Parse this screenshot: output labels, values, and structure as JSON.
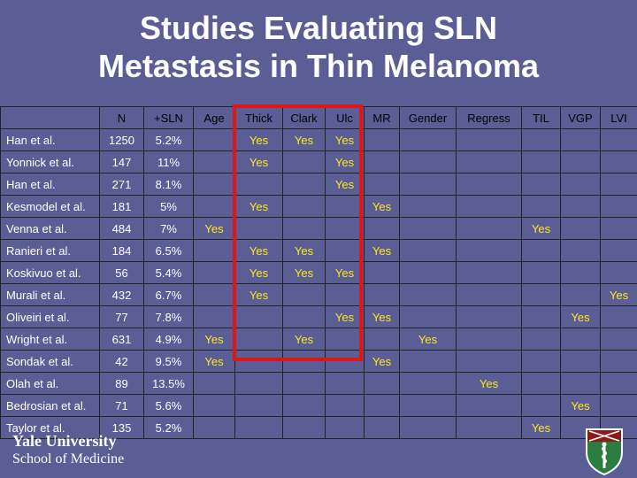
{
  "title": {
    "line1": "Studies Evaluating SLN",
    "line2": "Metastasis in Thin Melanoma"
  },
  "table": {
    "headers": [
      "",
      "N",
      "+SLN",
      "Age",
      "Thick",
      "Clark",
      "Ulc",
      "MR",
      "Gender",
      "Regress",
      "TIL",
      "VGP",
      "LVI"
    ],
    "rows": [
      [
        "Han et al.",
        "1250",
        "5.2%",
        "",
        "Yes",
        "Yes",
        "Yes",
        "",
        "",
        "",
        "",
        "",
        ""
      ],
      [
        "Yonnick et al.",
        "147",
        "11%",
        "",
        "Yes",
        "",
        "Yes",
        "",
        "",
        "",
        "",
        "",
        ""
      ],
      [
        "Han et al.",
        "271",
        "8.1%",
        "",
        "",
        "",
        "Yes",
        "",
        "",
        "",
        "",
        "",
        ""
      ],
      [
        "Kesmodel et al.",
        "181",
        "5%",
        "",
        "Yes",
        "",
        "",
        "Yes",
        "",
        "",
        "",
        "",
        ""
      ],
      [
        "Venna et al.",
        "484",
        "7%",
        "Yes",
        "",
        "",
        "",
        "",
        "",
        "",
        "Yes",
        "",
        ""
      ],
      [
        "Ranieri et al.",
        "184",
        "6.5%",
        "",
        "Yes",
        "Yes",
        "",
        "Yes",
        "",
        "",
        "",
        "",
        ""
      ],
      [
        "Koskivuo et al.",
        "56",
        "5.4%",
        "",
        "Yes",
        "Yes",
        "Yes",
        "",
        "",
        "",
        "",
        "",
        ""
      ],
      [
        "Murali et al.",
        "432",
        "6.7%",
        "",
        "Yes",
        "",
        "",
        "",
        "",
        "",
        "",
        "",
        "Yes"
      ],
      [
        "Oliveiri et al.",
        "77",
        "7.8%",
        "",
        "",
        "",
        "Yes",
        "Yes",
        "",
        "",
        "",
        "Yes",
        ""
      ],
      [
        "Wright et al.",
        "631",
        "4.9%",
        "Yes",
        "",
        "Yes",
        "",
        "",
        "Yes",
        "",
        "",
        "",
        ""
      ],
      [
        "Sondak et al.",
        "42",
        "9.5%",
        "Yes",
        "",
        "",
        "",
        "Yes",
        "",
        "",
        "",
        "",
        ""
      ],
      [
        "Olah et al.",
        "89",
        "13.5%",
        "",
        "",
        "",
        "",
        "",
        "",
        "Yes",
        "",
        "",
        ""
      ],
      [
        "Bedrosian et al.",
        "71",
        "5.6%",
        "",
        "",
        "",
        "",
        "",
        "",
        "",
        "",
        "Yes",
        ""
      ],
      [
        "Taylor et al.",
        "135",
        "5.2%",
        "",
        "",
        "",
        "",
        "",
        "",
        "",
        "Yes",
        "",
        ""
      ]
    ]
  },
  "logo": {
    "name": "Yale University",
    "subtitle": "School of Medicine"
  },
  "colors": {
    "background": "#5b5d95",
    "yes_text": "#ffe81a",
    "highlight": "#e01515"
  },
  "icons": [
    "yale-shield-icon"
  ]
}
